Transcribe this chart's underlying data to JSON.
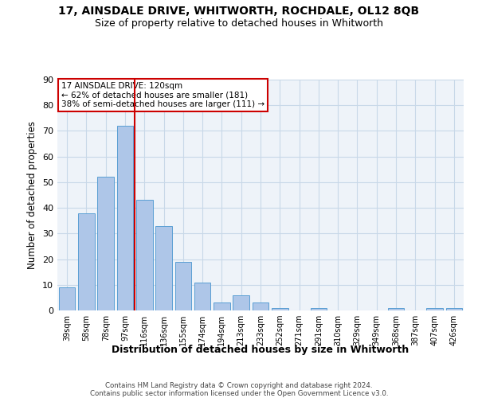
{
  "title": "17, AINSDALE DRIVE, WHITWORTH, ROCHDALE, OL12 8QB",
  "subtitle": "Size of property relative to detached houses in Whitworth",
  "xlabel": "Distribution of detached houses by size in Whitworth",
  "ylabel": "Number of detached properties",
  "categories": [
    "39sqm",
    "58sqm",
    "78sqm",
    "97sqm",
    "116sqm",
    "136sqm",
    "155sqm",
    "174sqm",
    "194sqm",
    "213sqm",
    "233sqm",
    "252sqm",
    "271sqm",
    "291sqm",
    "310sqm",
    "329sqm",
    "349sqm",
    "368sqm",
    "387sqm",
    "407sqm",
    "426sqm"
  ],
  "values": [
    9,
    38,
    52,
    72,
    43,
    33,
    19,
    11,
    3,
    6,
    3,
    1,
    0,
    1,
    0,
    0,
    0,
    1,
    0,
    1,
    1
  ],
  "bar_color": "#aec6e8",
  "bar_edge_color": "#5a9fd4",
  "grid_color": "#c8d8e8",
  "background_color": "#eef3f9",
  "vline_color": "#cc0000",
  "annotation_title": "17 AINSDALE DRIVE: 120sqm",
  "annotation_line1": "← 62% of detached houses are smaller (181)",
  "annotation_line2": "38% of semi-detached houses are larger (111) →",
  "annotation_box_color": "#ffffff",
  "annotation_box_edge": "#cc0000",
  "footer_line1": "Contains HM Land Registry data © Crown copyright and database right 2024.",
  "footer_line2": "Contains public sector information licensed under the Open Government Licence v3.0.",
  "ylim": [
    0,
    90
  ],
  "yticks": [
    0,
    10,
    20,
    30,
    40,
    50,
    60,
    70,
    80,
    90
  ]
}
